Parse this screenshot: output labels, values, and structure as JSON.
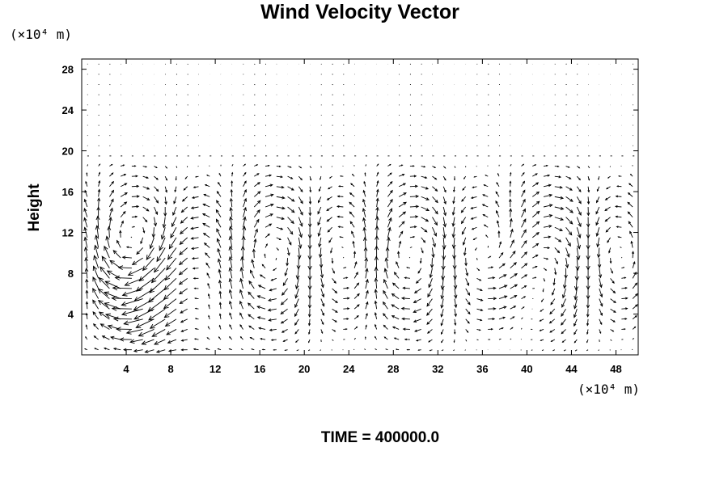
{
  "chart_data": {
    "type": "vector-field",
    "title": "Wind Velocity Vector",
    "ylabel": "Height",
    "y_unit_label": "(×10⁴ m)",
    "x_unit_label": "(×10⁴ m)",
    "time_label": "TIME = 400000.0",
    "x_ticks": [
      "4",
      "8",
      "12",
      "16",
      "20",
      "24",
      "28",
      "32",
      "36",
      "40",
      "44",
      "48"
    ],
    "y_ticks": [
      "4",
      "8",
      "12",
      "16",
      "20",
      "24",
      "28"
    ],
    "xlim": [
      0,
      50
    ],
    "ylim": [
      0,
      29
    ],
    "grid": false,
    "vector_field": {
      "x_step": 1.0,
      "y_step": 1.0,
      "region": "y between 0.5 and 19.5 shows large circulation cells; y above 20 shows near-zero vectors"
    }
  }
}
